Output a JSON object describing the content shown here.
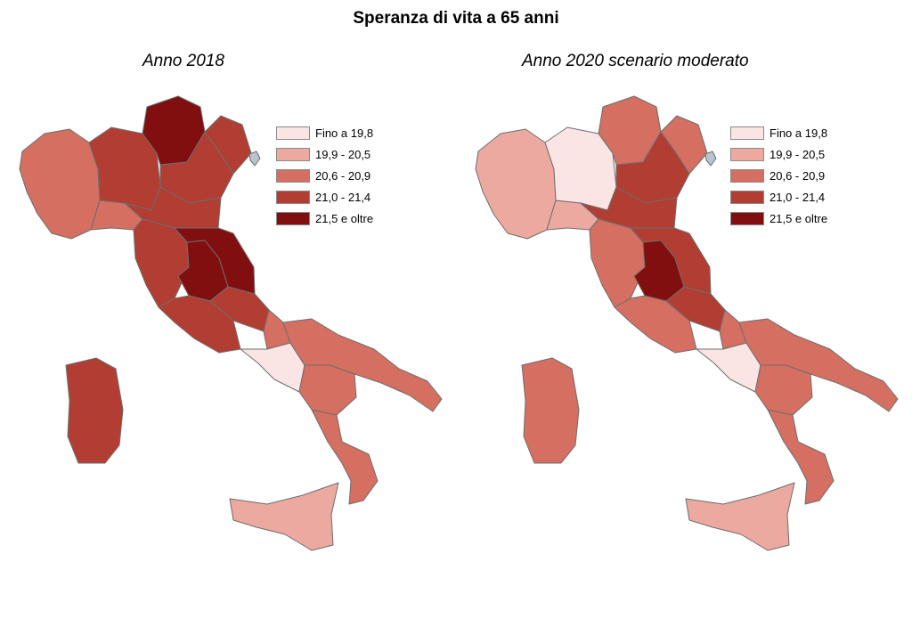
{
  "title": "Speranza di vita a 65 anni",
  "colors": {
    "c1": "#fbe4e4",
    "c2": "#eca9a0",
    "c3": "#d46f62",
    "c4": "#b23d32",
    "c5": "#820f10",
    "border": "#6e6e6e",
    "lake": "#b9c3ce"
  },
  "legend": [
    {
      "label": "Fino a 19,8",
      "color_key": "c1"
    },
    {
      "label": "19,9 - 20,5",
      "color_key": "c2"
    },
    {
      "label": "20,6 - 20,9",
      "color_key": "c3"
    },
    {
      "label": "21,0 - 21,4",
      "color_key": "c4"
    },
    {
      "label": "21,5 e oltre",
      "color_key": "c5"
    }
  ],
  "maps": [
    {
      "subtitle": "Anno 2018",
      "fills": {
        "north_west": "c3",
        "liguria": "c3",
        "lombardy": "c4",
        "trentino": "c5",
        "veneto": "c4",
        "friuli": "c4",
        "emilia": "c4",
        "tuscany": "c4",
        "umbria": "c5",
        "marche": "c5",
        "lazio": "c4",
        "abruzzo": "c4",
        "molise": "c3",
        "campania": "c1",
        "puglia": "c3",
        "basilicata": "c3",
        "calabria": "c3",
        "sicily": "c2",
        "sardinia": "c4"
      }
    },
    {
      "subtitle": "Anno 2020 scenario moderato",
      "fills": {
        "north_west": "c2",
        "liguria": "c2",
        "lombardy": "c1",
        "trentino": "c3",
        "veneto": "c4",
        "friuli": "c3",
        "emilia": "c4",
        "tuscany": "c3",
        "umbria": "c5",
        "marche": "c4",
        "lazio": "c3",
        "abruzzo": "c4",
        "molise": "c3",
        "campania": "c1",
        "puglia": "c3",
        "basilicata": "c3",
        "calabria": "c3",
        "sicily": "c2",
        "sardinia": "c3"
      }
    }
  ]
}
